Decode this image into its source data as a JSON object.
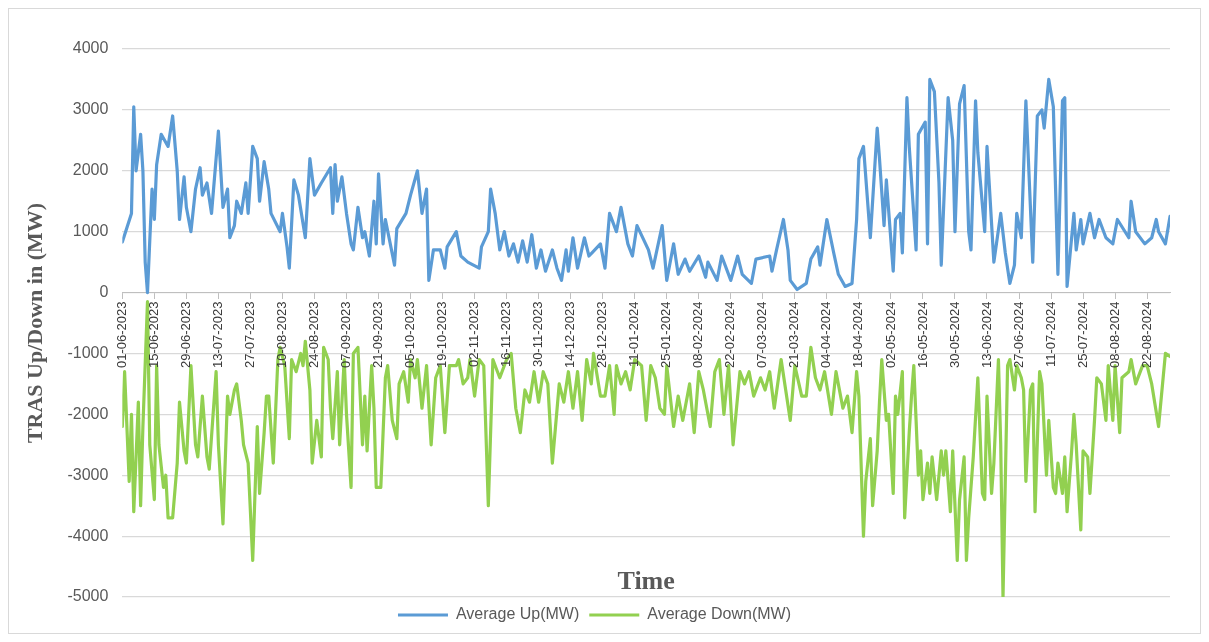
{
  "chart_data": {
    "type": "line",
    "xlabel": "Time",
    "ylabel": "TRAS Up/Down in (MW)",
    "xlim": [
      "2023-06-01",
      "2024-09-01"
    ],
    "xticks": [
      {
        "value": "2023-06-01",
        "label": "01-06-2023"
      },
      {
        "value": "2023-06-15",
        "label": "15-06-2023"
      },
      {
        "value": "2023-06-29",
        "label": "29-06-2023"
      },
      {
        "value": "2023-07-13",
        "label": "13-07-2023"
      },
      {
        "value": "2023-07-27",
        "label": "27-07-2023"
      },
      {
        "value": "2023-08-10",
        "label": "10-08-2023"
      },
      {
        "value": "2023-08-24",
        "label": "24-08-2023"
      },
      {
        "value": "2023-09-07",
        "label": "07-09-2023"
      },
      {
        "value": "2023-09-21",
        "label": "21-09-2023"
      },
      {
        "value": "2023-10-05",
        "label": "05-10-2023"
      },
      {
        "value": "2023-10-19",
        "label": "19-10-2023"
      },
      {
        "value": "2023-11-02",
        "label": "02-11-2023"
      },
      {
        "value": "2023-11-16",
        "label": "16-11-2023"
      },
      {
        "value": "2023-11-30",
        "label": "30-11-2023"
      },
      {
        "value": "2023-12-14",
        "label": "14-12-2023"
      },
      {
        "value": "2023-12-28",
        "label": "28-12-2023"
      },
      {
        "value": "2024-01-11",
        "label": "11-01-2024"
      },
      {
        "value": "2024-01-25",
        "label": "25-01-2024"
      },
      {
        "value": "2024-02-08",
        "label": "08-02-2024"
      },
      {
        "value": "2024-02-22",
        "label": "22-02-2024"
      },
      {
        "value": "2024-03-07",
        "label": "07-03-2024"
      },
      {
        "value": "2024-03-21",
        "label": "21-03-2024"
      },
      {
        "value": "2024-04-04",
        "label": "04-04-2024"
      },
      {
        "value": "2024-04-18",
        "label": "18-04-2024"
      },
      {
        "value": "2024-05-02",
        "label": "02-05-2024"
      },
      {
        "value": "2024-05-16",
        "label": "16-05-2024"
      },
      {
        "value": "2024-05-30",
        "label": "30-05-2024"
      },
      {
        "value": "2024-06-13",
        "label": "13-06-2024"
      },
      {
        "value": "2024-06-27",
        "label": "27-06-2024"
      },
      {
        "value": "2024-07-11",
        "label": "11-07-2024"
      },
      {
        "value": "2024-07-25",
        "label": "25-07-2024"
      },
      {
        "value": "2024-08-08",
        "label": "08-08-2024"
      },
      {
        "value": "2024-08-22",
        "label": "22-08-2024"
      }
    ],
    "ylim": [
      -5000,
      4000
    ],
    "yticks": [
      -5000,
      -4000,
      -3000,
      -2000,
      -1000,
      0,
      1000,
      2000,
      3000,
      4000
    ],
    "grid": "y",
    "legend": "bottom",
    "marker": "none",
    "line_style": "solid",
    "series": [
      {
        "name": "Average Up(MW)",
        "color": "#5b9bd5",
        "x": [
          "2023-06-01",
          "2023-06-05",
          "2023-06-06",
          "2023-06-07",
          "2023-06-09",
          "2023-06-10",
          "2023-06-11",
          "2023-06-12",
          "2023-06-14",
          "2023-06-15",
          "2023-06-16",
          "2023-06-18",
          "2023-06-21",
          "2023-06-23",
          "2023-06-25",
          "2023-06-26",
          "2023-06-28",
          "2023-06-29",
          "2023-07-01",
          "2023-07-03",
          "2023-07-05",
          "2023-07-06",
          "2023-07-08",
          "2023-07-10",
          "2023-07-13",
          "2023-07-15",
          "2023-07-17",
          "2023-07-18",
          "2023-07-20",
          "2023-07-21",
          "2023-07-23",
          "2023-07-25",
          "2023-07-26",
          "2023-07-28",
          "2023-07-30",
          "2023-07-31",
          "2023-08-02",
          "2023-08-04",
          "2023-08-05",
          "2023-08-09",
          "2023-08-10",
          "2023-08-12",
          "2023-08-13",
          "2023-08-15",
          "2023-08-17",
          "2023-08-20",
          "2023-08-22",
          "2023-08-24",
          "2023-08-27",
          "2023-08-31",
          "2023-09-01",
          "2023-09-02",
          "2023-09-03",
          "2023-09-05",
          "2023-09-07",
          "2023-09-09",
          "2023-09-10",
          "2023-09-12",
          "2023-09-14",
          "2023-09-15",
          "2023-09-17",
          "2023-09-19",
          "2023-09-20",
          "2023-09-21",
          "2023-09-23",
          "2023-09-24",
          "2023-09-28",
          "2023-09-29",
          "2023-10-03",
          "2023-10-05",
          "2023-10-08",
          "2023-10-10",
          "2023-10-12",
          "2023-10-13",
          "2023-10-15",
          "2023-10-18",
          "2023-10-20",
          "2023-10-21",
          "2023-10-25",
          "2023-10-27",
          "2023-10-30",
          "2023-11-04",
          "2023-11-05",
          "2023-11-08",
          "2023-11-09",
          "2023-11-11",
          "2023-11-13",
          "2023-11-15",
          "2023-11-17",
          "2023-11-19",
          "2023-11-21",
          "2023-11-23",
          "2023-11-25",
          "2023-11-27",
          "2023-11-29",
          "2023-12-01",
          "2023-12-03",
          "2023-12-06",
          "2023-12-08",
          "2023-12-10",
          "2023-12-12",
          "2023-12-13",
          "2023-12-15",
          "2023-12-17",
          "2023-12-20",
          "2023-12-22",
          "2023-12-27",
          "2023-12-29",
          "2023-12-31",
          "2024-01-03",
          "2024-01-05",
          "2024-01-08",
          "2024-01-10",
          "2024-01-12",
          "2024-01-17",
          "2024-01-19",
          "2024-01-23",
          "2024-01-25",
          "2024-01-28",
          "2024-01-30",
          "2024-02-02",
          "2024-02-04",
          "2024-02-08",
          "2024-02-11",
          "2024-02-12",
          "2024-02-16",
          "2024-02-18",
          "2024-02-22",
          "2024-02-25",
          "2024-02-27",
          "2024-03-02",
          "2024-03-04",
          "2024-03-10",
          "2024-03-11",
          "2024-03-13",
          "2024-03-16",
          "2024-03-18",
          "2024-03-19",
          "2024-03-22",
          "2024-03-26",
          "2024-03-28",
          "2024-03-31",
          "2024-04-01",
          "2024-04-04",
          "2024-04-07",
          "2024-04-09",
          "2024-04-12",
          "2024-04-15",
          "2024-04-17",
          "2024-04-18",
          "2024-04-20",
          "2024-04-23",
          "2024-04-26",
          "2024-04-27",
          "2024-04-29",
          "2024-04-30",
          "2024-05-03",
          "2024-05-04",
          "2024-05-06",
          "2024-05-07",
          "2024-05-09",
          "2024-05-10",
          "2024-05-13",
          "2024-05-14",
          "2024-05-17",
          "2024-05-18",
          "2024-05-19",
          "2024-05-21",
          "2024-05-23",
          "2024-05-24",
          "2024-05-27",
          "2024-05-29",
          "2024-05-30",
          "2024-06-01",
          "2024-06-03",
          "2024-06-05",
          "2024-06-06",
          "2024-06-08",
          "2024-06-09",
          "2024-06-12",
          "2024-06-13",
          "2024-06-16",
          "2024-06-19",
          "2024-06-21",
          "2024-06-23",
          "2024-06-25",
          "2024-06-26",
          "2024-06-28",
          "2024-06-30",
          "2024-07-03",
          "2024-07-05",
          "2024-07-07",
          "2024-07-08",
          "2024-07-10",
          "2024-07-12",
          "2024-07-14",
          "2024-07-16",
          "2024-07-17",
          "2024-07-18",
          "2024-07-21",
          "2024-07-22",
          "2024-07-24",
          "2024-07-25",
          "2024-07-28",
          "2024-07-30",
          "2024-08-01",
          "2024-08-04",
          "2024-08-07",
          "2024-08-09",
          "2024-08-14",
          "2024-08-15",
          "2024-08-17",
          "2024-08-21",
          "2024-08-24",
          "2024-08-26",
          "2024-08-27",
          "2024-08-30",
          "2024-09-01"
        ],
        "values": [
          830,
          1300,
          3050,
          2000,
          2600,
          2000,
          500,
          0,
          1700,
          1200,
          2100,
          2600,
          2400,
          2900,
          2000,
          1200,
          1900,
          1400,
          1000,
          1700,
          2050,
          1600,
          1800,
          1300,
          2650,
          1400,
          1700,
          900,
          1100,
          1500,
          1300,
          1800,
          1300,
          2400,
          2200,
          1500,
          2150,
          1700,
          1300,
          1000,
          1300,
          750,
          400,
          1850,
          1600,
          900,
          2200,
          1600,
          1800,
          2050,
          1300,
          2100,
          1500,
          1900,
          1300,
          800,
          700,
          1400,
          900,
          1000,
          600,
          1500,
          800,
          1950,
          800,
          1200,
          450,
          1050,
          1300,
          1600,
          2000,
          1300,
          1700,
          200,
          700,
          700,
          400,
          750,
          1000,
          600,
          500,
          400,
          750,
          1000,
          1700,
          1300,
          700,
          1000,
          600,
          800,
          500,
          850,
          500,
          950,
          400,
          700,
          350,
          700,
          400,
          200,
          700,
          350,
          900,
          400,
          900,
          600,
          800,
          400,
          1300,
          1000,
          1400,
          800,
          600,
          1100,
          700,
          400,
          1100,
          200,
          800,
          300,
          550,
          350,
          600,
          250,
          500,
          200,
          600,
          200,
          600,
          300,
          150,
          550,
          600,
          350,
          700,
          1200,
          700,
          200,
          50,
          150,
          550,
          750,
          450,
          1200,
          650,
          300,
          100,
          150,
          1200,
          2200,
          2400,
          900,
          2700,
          2200,
          1100,
          1850,
          350,
          1200,
          1300,
          650,
          3200,
          2400,
          700,
          2600,
          2800,
          800,
          3500,
          3300,
          1800,
          450,
          3200,
          2500,
          1000,
          3100,
          3400,
          1000,
          700,
          3150,
          2300,
          1000,
          2400,
          500,
          1300,
          650,
          150,
          450,
          1300,
          900,
          3150,
          500,
          2900,
          3000,
          2700,
          3500,
          3050,
          300,
          3150,
          3200,
          100,
          1300,
          700,
          1200,
          800,
          1300,
          900,
          1200,
          900,
          800,
          1200,
          900,
          1500,
          1000,
          800,
          900,
          1200,
          1000,
          800,
          1250
        ]
      },
      {
        "name": "Average Down(MW)",
        "color": "#92d050",
        "x": [
          "2023-06-01",
          "2023-06-02",
          "2023-06-04",
          "2023-06-05",
          "2023-06-06",
          "2023-06-08",
          "2023-06-09",
          "2023-06-10",
          "2023-06-12",
          "2023-06-13",
          "2023-06-15",
          "2023-06-16",
          "2023-06-17",
          "2023-06-19",
          "2023-06-20",
          "2023-06-21",
          "2023-06-23",
          "2023-06-25",
          "2023-06-26",
          "2023-06-28",
          "2023-06-29",
          "2023-07-01",
          "2023-07-03",
          "2023-07-04",
          "2023-07-06",
          "2023-07-08",
          "2023-07-09",
          "2023-07-12",
          "2023-07-13",
          "2023-07-15",
          "2023-07-17",
          "2023-07-18",
          "2023-07-20",
          "2023-07-21",
          "2023-07-23",
          "2023-07-24",
          "2023-07-26",
          "2023-07-28",
          "2023-07-30",
          "2023-07-31",
          "2023-08-02",
          "2023-08-03",
          "2023-08-04",
          "2023-08-06",
          "2023-08-08",
          "2023-08-09",
          "2023-08-11",
          "2023-08-13",
          "2023-08-14",
          "2023-08-16",
          "2023-08-18",
          "2023-08-19",
          "2023-08-20",
          "2023-08-22",
          "2023-08-23",
          "2023-08-25",
          "2023-08-27",
          "2023-08-28",
          "2023-08-30",
          "2023-08-31",
          "2023-09-01",
          "2023-09-03",
          "2023-09-04",
          "2023-09-06",
          "2023-09-07",
          "2023-09-09",
          "2023-09-10",
          "2023-09-12",
          "2023-09-14",
          "2023-09-15",
          "2023-09-16",
          "2023-09-18",
          "2023-09-19",
          "2023-09-20",
          "2023-09-22",
          "2023-09-24",
          "2023-09-25",
          "2023-09-27",
          "2023-09-29",
          "2023-09-30",
          "2023-10-02",
          "2023-10-04",
          "2023-10-05",
          "2023-10-07",
          "2023-10-08",
          "2023-10-10",
          "2023-10-12",
          "2023-10-14",
          "2023-10-16",
          "2023-10-18",
          "2023-10-20",
          "2023-10-22",
          "2023-10-25",
          "2023-10-26",
          "2023-10-28",
          "2023-10-30",
          "2023-10-31",
          "2023-11-02",
          "2023-11-04",
          "2023-11-06",
          "2023-11-08",
          "2023-11-10",
          "2023-11-12",
          "2023-11-13",
          "2023-11-16",
          "2023-11-18",
          "2023-11-20",
          "2023-11-22",
          "2023-11-24",
          "2023-11-26",
          "2023-11-28",
          "2023-11-30",
          "2023-12-02",
          "2023-12-04",
          "2023-12-06",
          "2023-12-09",
          "2023-12-11",
          "2023-12-13",
          "2023-12-15",
          "2023-12-17",
          "2023-12-19",
          "2023-12-21",
          "2023-12-23",
          "2023-12-24",
          "2023-12-27",
          "2023-12-29",
          "2023-12-31",
          "2024-01-02",
          "2024-01-03",
          "2024-01-05",
          "2024-01-07",
          "2024-01-09",
          "2024-01-11",
          "2024-01-14",
          "2024-01-16",
          "2024-01-18",
          "2024-01-20",
          "2024-01-22",
          "2024-01-24",
          "2024-01-25",
          "2024-01-28",
          "2024-01-30",
          "2024-02-01",
          "2024-02-04",
          "2024-02-06",
          "2024-02-08",
          "2024-02-10",
          "2024-02-13",
          "2024-02-15",
          "2024-02-17",
          "2024-02-19",
          "2024-02-21",
          "2024-02-23",
          "2024-02-26",
          "2024-02-28",
          "2024-03-01",
          "2024-03-03",
          "2024-03-06",
          "2024-03-08",
          "2024-03-10",
          "2024-03-12",
          "2024-03-15",
          "2024-03-17",
          "2024-03-19",
          "2024-03-21",
          "2024-03-24",
          "2024-03-26",
          "2024-03-28",
          "2024-03-30",
          "2024-04-01",
          "2024-04-03",
          "2024-04-06",
          "2024-04-08",
          "2024-04-11",
          "2024-04-13",
          "2024-04-15",
          "2024-04-17",
          "2024-04-18",
          "2024-04-20",
          "2024-04-21",
          "2024-04-23",
          "2024-04-24",
          "2024-04-26",
          "2024-04-27",
          "2024-04-28",
          "2024-04-30",
          "2024-05-01",
          "2024-05-03",
          "2024-05-04",
          "2024-05-05",
          "2024-05-07",
          "2024-05-08",
          "2024-05-10",
          "2024-05-11",
          "2024-05-12",
          "2024-05-14",
          "2024-05-15",
          "2024-05-16",
          "2024-05-18",
          "2024-05-19",
          "2024-05-20",
          "2024-05-22",
          "2024-05-24",
          "2024-05-25",
          "2024-05-26",
          "2024-05-28",
          "2024-05-29",
          "2024-05-31",
          "2024-06-01",
          "2024-06-03",
          "2024-06-04",
          "2024-06-05",
          "2024-06-07",
          "2024-06-09",
          "2024-06-11",
          "2024-06-12",
          "2024-06-13",
          "2024-06-15",
          "2024-06-16",
          "2024-06-18",
          "2024-06-19",
          "2024-06-20",
          "2024-06-22",
          "2024-06-23",
          "2024-06-25",
          "2024-06-26",
          "2024-06-28",
          "2024-06-29",
          "2024-06-30",
          "2024-07-02",
          "2024-07-03",
          "2024-07-04",
          "2024-07-06",
          "2024-07-07",
          "2024-07-09",
          "2024-07-10",
          "2024-07-12",
          "2024-07-13",
          "2024-07-14",
          "2024-07-16",
          "2024-07-17",
          "2024-07-18",
          "2024-07-20",
          "2024-07-21",
          "2024-07-22",
          "2024-07-24",
          "2024-07-25",
          "2024-07-27",
          "2024-07-28",
          "2024-07-30",
          "2024-07-31",
          "2024-08-02",
          "2024-08-04",
          "2024-08-05",
          "2024-08-07",
          "2024-08-08",
          "2024-08-10",
          "2024-08-11",
          "2024-08-14",
          "2024-08-15",
          "2024-08-17",
          "2024-08-20",
          "2024-08-22",
          "2024-08-24",
          "2024-08-27",
          "2024-08-30",
          "2024-09-01"
        ],
        "values": [
          -2200,
          -1300,
          -3100,
          -2000,
          -3600,
          -1800,
          -3500,
          -2200,
          -150,
          -2500,
          -3400,
          -1200,
          -2500,
          -3200,
          -3000,
          -3700,
          -3700,
          -2800,
          -1800,
          -2600,
          -2800,
          -1200,
          -2500,
          -2700,
          -1700,
          -2700,
          -2900,
          -1300,
          -2500,
          -3800,
          -1700,
          -2000,
          -1600,
          -1500,
          -2100,
          -2500,
          -2800,
          -4400,
          -2200,
          -3300,
          -2300,
          -1700,
          -1700,
          -2800,
          -1100,
          -900,
          -1200,
          -2400,
          -1100,
          -1300,
          -1000,
          -1200,
          -800,
          -1600,
          -2800,
          -2100,
          -2700,
          -900,
          -1100,
          -1900,
          -2400,
          -1300,
          -2500,
          -1100,
          -2000,
          -3200,
          -1000,
          -900,
          -2500,
          -1700,
          -2600,
          -1200,
          -1900,
          -3200,
          -3200,
          -1400,
          -1200,
          -2100,
          -2400,
          -1500,
          -1300,
          -1800,
          -1100,
          -1400,
          -1100,
          -1900,
          -1200,
          -2500,
          -1400,
          -1200,
          -2300,
          -1200,
          -1200,
          -1100,
          -1500,
          -1400,
          -1100,
          -1700,
          -1100,
          -1200,
          -3500,
          -1100,
          -1300,
          -1400,
          -1100,
          -1000,
          -1900,
          -2300,
          -1600,
          -1800,
          -1300,
          -1800,
          -1300,
          -1500,
          -2800,
          -1500,
          -1800,
          -1300,
          -1900,
          -1300,
          -2100,
          -1100,
          -1500,
          -1000,
          -1700,
          -1700,
          -1200,
          -2000,
          -1200,
          -1500,
          -1300,
          -1600,
          -1100,
          -1200,
          -2100,
          -1200,
          -1400,
          -1900,
          -2000,
          -1200,
          -2200,
          -1700,
          -2100,
          -1500,
          -2300,
          -1300,
          -1600,
          -2200,
          -1300,
          -1100,
          -2000,
          -1200,
          -2500,
          -1300,
          -1500,
          -1300,
          -1700,
          -1400,
          -1600,
          -1300,
          -1900,
          -1100,
          -1600,
          -2100,
          -1200,
          -1700,
          -1700,
          -900,
          -1400,
          -1600,
          -1300,
          -2000,
          -1300,
          -1900,
          -1700,
          -2300,
          -1300,
          -1700,
          -4000,
          -3100,
          -2400,
          -3500,
          -2600,
          -1800,
          -1100,
          -2100,
          -2000,
          -3300,
          -1700,
          -2000,
          -1300,
          -3700,
          -2300,
          -1700,
          -1200,
          -3000,
          -2600,
          -3400,
          -2800,
          -3300,
          -2700,
          -3400,
          -2600,
          -3000,
          -2600,
          -3600,
          -2600,
          -4400,
          -3400,
          -2700,
          -4400,
          -3700,
          -2700,
          -1400,
          -3300,
          -3400,
          -1700,
          -3300,
          -2800,
          -1100,
          -2500,
          -5000,
          -1200,
          -1100,
          -1600,
          -1200,
          -1400,
          -1600,
          -3100,
          -1600,
          -1500,
          -3600,
          -1300,
          -1500,
          -3000,
          -2100,
          -3200,
          -3300,
          -2800,
          -3300,
          -2700,
          -3600,
          -2600,
          -2000,
          -2500,
          -3900,
          -2600,
          -2700,
          -3300,
          -2100,
          -1400,
          -1500,
          -2100,
          -1200,
          -2100,
          -1200,
          -2300,
          -1400,
          -1300,
          -1100,
          -1500,
          -1200,
          -1200,
          -1500,
          -2200,
          -1000,
          -1050
        ]
      }
    ]
  }
}
